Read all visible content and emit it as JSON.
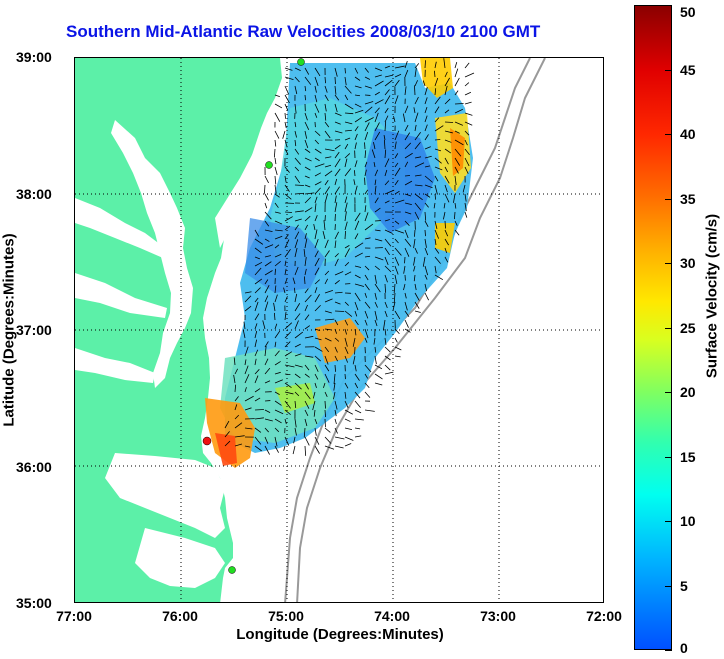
{
  "title": "Southern Mid-Atlantic Raw Velocities 2008/03/10 2100 GMT",
  "axes": {
    "x_label": "Longitude (Degrees:Minutes)",
    "y_label": "Latitude (Degrees:Minutes)",
    "x_ticks": [
      "77:00",
      "76:00",
      "75:00",
      "74:00",
      "73:00",
      "72:00"
    ],
    "y_ticks": [
      "39:00",
      "38:00",
      "37:00",
      "36:00",
      "35:00"
    ]
  },
  "colorbar": {
    "label": "Surface Velocity (cm/s)",
    "ticks": [
      "0",
      "5",
      "10",
      "15",
      "20",
      "25",
      "30",
      "35",
      "40",
      "45",
      "50"
    ]
  },
  "colors": {
    "land": "#5cf0a8",
    "water": "#ffffff",
    "title": "#0a14e6",
    "grid": "#000000",
    "bathymetry": "#999999",
    "station_green": "#22dd22",
    "station_red": "#ee1111"
  }
}
